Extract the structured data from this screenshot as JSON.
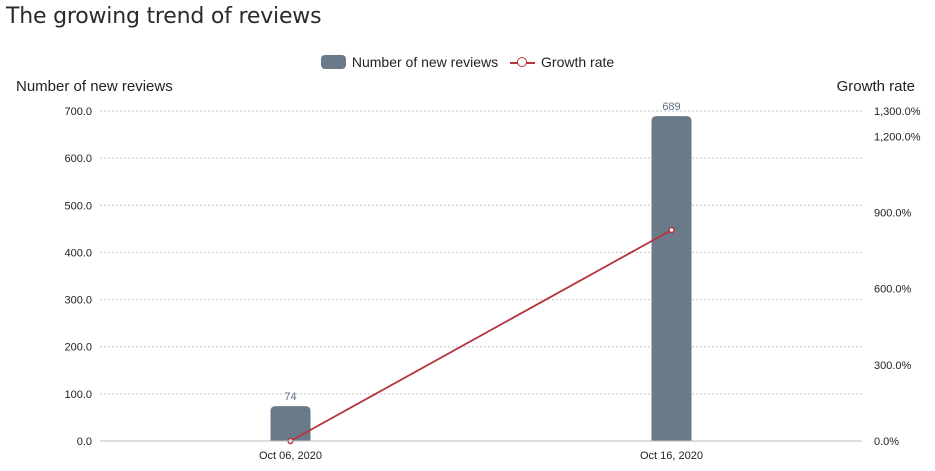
{
  "chart_data": {
    "type": "bar",
    "title": "The growing trend of reviews",
    "categories": [
      "Oct 06, 2020",
      "Oct 16, 2020"
    ],
    "series": [
      {
        "name": "Number of new reviews",
        "kind": "bar",
        "axis": "left",
        "values": [
          74,
          689
        ],
        "data_labels": [
          "74",
          "689"
        ],
        "color": "#6a7a89"
      },
      {
        "name": "Growth rate",
        "kind": "line",
        "axis": "right",
        "values": [
          0,
          831
        ],
        "color": "#b5343f"
      }
    ],
    "y_left": {
      "label": "Number of new reviews",
      "range": [
        0,
        700
      ],
      "ticks": [
        0,
        100,
        200,
        300,
        400,
        500,
        600,
        700
      ],
      "tick_labels": [
        "0.0",
        "100.0",
        "200.0",
        "300.0",
        "400.0",
        "500.0",
        "600.0",
        "700.0"
      ]
    },
    "y_right": {
      "label": "Growth rate",
      "range": [
        0,
        1300
      ],
      "ticks": [
        0,
        300,
        600,
        900,
        1200,
        1300
      ],
      "tick_labels": [
        "0.0%",
        "300.0%",
        "600.0%",
        "900.0%",
        "1,200.0%",
        "1,300.0%"
      ]
    },
    "grid": true,
    "legend": "top-center"
  }
}
